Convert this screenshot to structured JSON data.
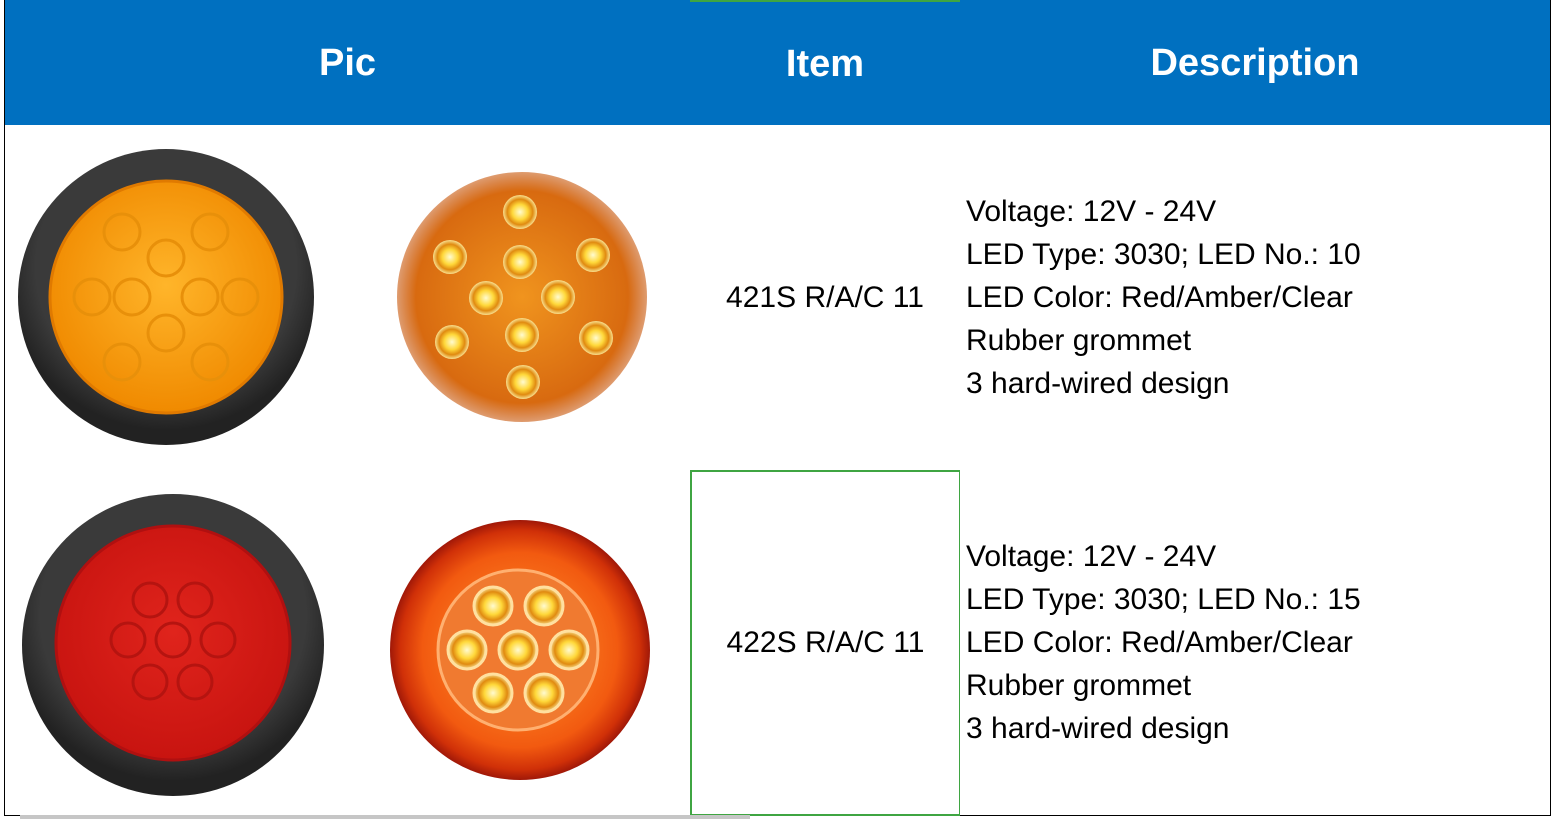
{
  "header": {
    "pic": "Pic",
    "item": "Item",
    "description": "Description"
  },
  "colors": {
    "header_bg": "#0070c0",
    "selection": "#3fa542"
  },
  "rows": [
    {
      "item": "421S R/A/C 11",
      "description": [
        "Voltage: 12V - 24V",
        "LED Type: 3030; LED No.: 10",
        "LED Color: Red/Amber/Clear",
        "Rubber grommet",
        "3 hard-wired design"
      ],
      "pics": [
        "amber-lamp-with-grommet",
        "amber-led-lamp"
      ]
    },
    {
      "item": "422S R/A/C 11",
      "description": [
        "Voltage: 12V - 24V",
        "LED Type: 3030; LED No.: 15",
        "LED Color: Red/Amber/Clear",
        "Rubber grommet",
        "3 hard-wired design"
      ],
      "pics": [
        "red-lamp-with-grommet",
        "orange-led-lamp"
      ]
    }
  ]
}
